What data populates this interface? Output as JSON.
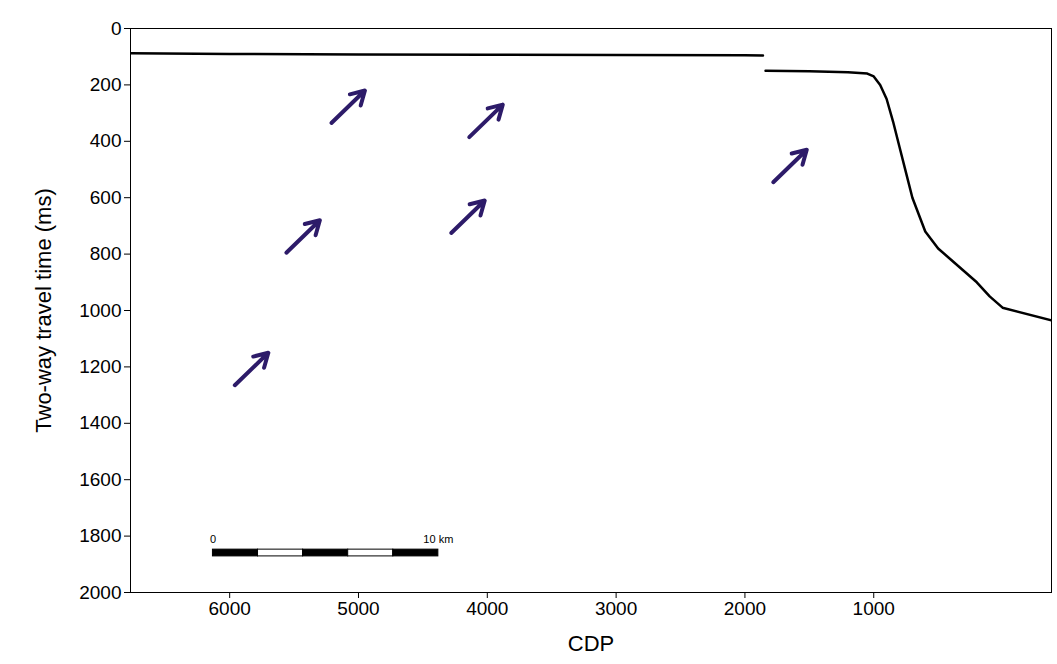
{
  "chart_data": {
    "type": "line",
    "xlabel": "CDP",
    "ylabel": "Two-way travel time (ms)",
    "xlim": [
      6770,
      -380
    ],
    "xticks": [
      6000,
      5000,
      4000,
      3000,
      2000,
      1000
    ],
    "ylim": [
      0,
      2000
    ],
    "yticks": [
      0,
      200,
      400,
      600,
      800,
      1000,
      1200,
      1400,
      1600,
      1800,
      2000
    ],
    "grid": false,
    "color": "#000000",
    "x": [
      6770,
      6000,
      5000,
      4000,
      3000,
      2000,
      1860,
      1850,
      1840,
      1500,
      1200,
      1050,
      1000,
      950,
      900,
      850,
      800,
      750,
      700,
      600,
      500,
      400,
      300,
      200,
      100,
      0,
      -380
    ],
    "values": [
      88,
      90,
      92,
      93,
      94,
      95,
      96,
      null,
      150,
      152,
      155,
      160,
      170,
      200,
      250,
      330,
      420,
      510,
      600,
      720,
      780,
      820,
      860,
      900,
      950,
      990,
      1035
    ],
    "annotations": {
      "color": "#2d1b69",
      "marker": "arrow",
      "x": [
        4950,
        3880,
        1520,
        5300,
        4020,
        5700
      ],
      "y": [
        220,
        270,
        430,
        680,
        610,
        1150
      ]
    },
    "scale_bar": {
      "labels": [
        "0",
        "10 km"
      ],
      "x": [
        6130,
        4380
      ],
      "y": 1860
    }
  }
}
